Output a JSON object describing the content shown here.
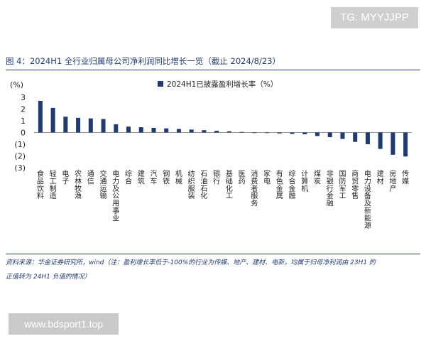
{
  "watermarks": {
    "top": "TG: MYYJJPP",
    "bottom": "www.bdsport1.top"
  },
  "figure_title": "图 4：2024H1 全行业归属母公司净利润同比增长一览（截止 2024/8/23）",
  "source_note": {
    "line1": "资料来源：华金证券研究所，wind（注：盈利增长率低于-100%的行业为传媒、地产、建材、电新，均属于归母净利润由 23H1 的",
    "line2": "正值转为 24H1 负值的情况）"
  },
  "colors": {
    "bar": "#1f3b73",
    "title": "#1f3b73",
    "axis_text": "#222222"
  },
  "chart_data": {
    "type": "bar",
    "title": "",
    "ylabel": "(%)",
    "ylim": [
      -3,
      3
    ],
    "yticks": [
      {
        "value": 3,
        "label": "3"
      },
      {
        "value": 2,
        "label": "2"
      },
      {
        "value": 1,
        "label": "1"
      },
      {
        "value": 0,
        "label": "0"
      },
      {
        "value": -1,
        "label": "(1)"
      },
      {
        "value": -2,
        "label": "(2)"
      },
      {
        "value": -3,
        "label": "(3)"
      }
    ],
    "grid": false,
    "legend": {
      "position": "top-right",
      "label": "2024H1已披露盈利增长率（%）"
    },
    "categories": [
      "食品饮料",
      "轻工制造",
      "电子",
      "农林牧渔",
      "通信",
      "交通运输",
      "电力及公用事业",
      "综合",
      "建筑",
      "汽车",
      "钢铁",
      "机械",
      "纺织服装",
      "石油石化",
      "银行",
      "基础化工",
      "医药",
      "消费者服务",
      "家电",
      "有色金属",
      "综合金融",
      "计算机",
      "煤炭",
      "非银行金融",
      "国防军工",
      "商贸零售",
      "电力设备及新能源",
      "建材",
      "房地产",
      "传媒"
    ],
    "series": [
      {
        "name": "2024H1已披露盈利增长率（%）",
        "values": [
          2.7,
          2.1,
          1.35,
          1.25,
          1.2,
          1.15,
          0.7,
          0.5,
          0.45,
          0.4,
          0.35,
          0.3,
          0.25,
          0.2,
          0.15,
          0.1,
          0.05,
          -0.05,
          -0.05,
          -0.08,
          -0.12,
          -0.15,
          -0.3,
          -0.4,
          -0.55,
          -0.8,
          -1.0,
          -1.4,
          -1.9,
          -2.05
        ]
      }
    ]
  }
}
